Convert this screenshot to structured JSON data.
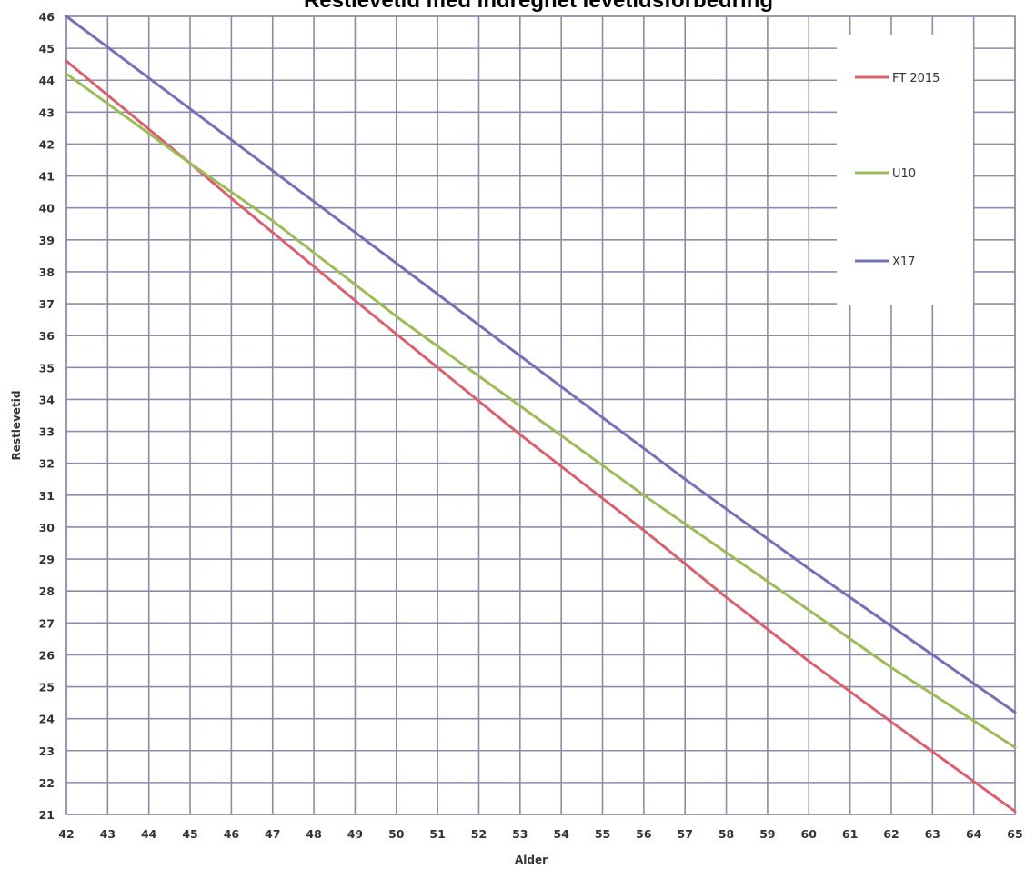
{
  "chart_data": {
    "type": "line",
    "title": "Restlevetid med indregnet levetidsforbedring",
    "xlabel": "Alder",
    "ylabel": "Restlevetid",
    "xlim": [
      42,
      65
    ],
    "ylim": [
      21,
      46
    ],
    "x_ticks": [
      "42",
      "43",
      "44",
      "45",
      "46",
      "47",
      "48",
      "49",
      "50",
      "51",
      "52",
      "53",
      "54",
      "55",
      "56",
      "57",
      "58",
      "59",
      "60",
      "61",
      "62",
      "63",
      "64",
      "65"
    ],
    "y_ticks": [
      "21",
      "22",
      "23",
      "24",
      "25",
      "26",
      "27",
      "28",
      "29",
      "30",
      "31",
      "32",
      "33",
      "34",
      "35",
      "36",
      "37",
      "38",
      "39",
      "40",
      "41",
      "42",
      "43",
      "44",
      "45",
      "46"
    ],
    "grid": true,
    "legend_position": "top-right",
    "series": [
      {
        "name": "FT 2015",
        "color": "#d9606e",
        "x": [
          42,
          45,
          46,
          49,
          51,
          53,
          56,
          58,
          60,
          62,
          65
        ],
        "y": [
          44.6,
          41.4,
          40.3,
          37.1,
          35.0,
          32.9,
          29.9,
          27.8,
          25.8,
          23.9,
          21.1
        ]
      },
      {
        "name": "U10",
        "color": "#9dbb59",
        "x": [
          42,
          45,
          47,
          50,
          53,
          56,
          59,
          62,
          65
        ],
        "y": [
          44.2,
          41.4,
          39.6,
          36.6,
          33.8,
          31.0,
          28.3,
          25.6,
          23.1
        ]
      },
      {
        "name": "X17",
        "color": "#7670b4",
        "x": [
          42,
          45,
          48,
          51,
          54,
          57,
          60,
          63,
          65
        ],
        "y": [
          46.0,
          43.1,
          40.2,
          37.3,
          34.4,
          31.5,
          28.7,
          26.0,
          24.2
        ]
      }
    ]
  }
}
